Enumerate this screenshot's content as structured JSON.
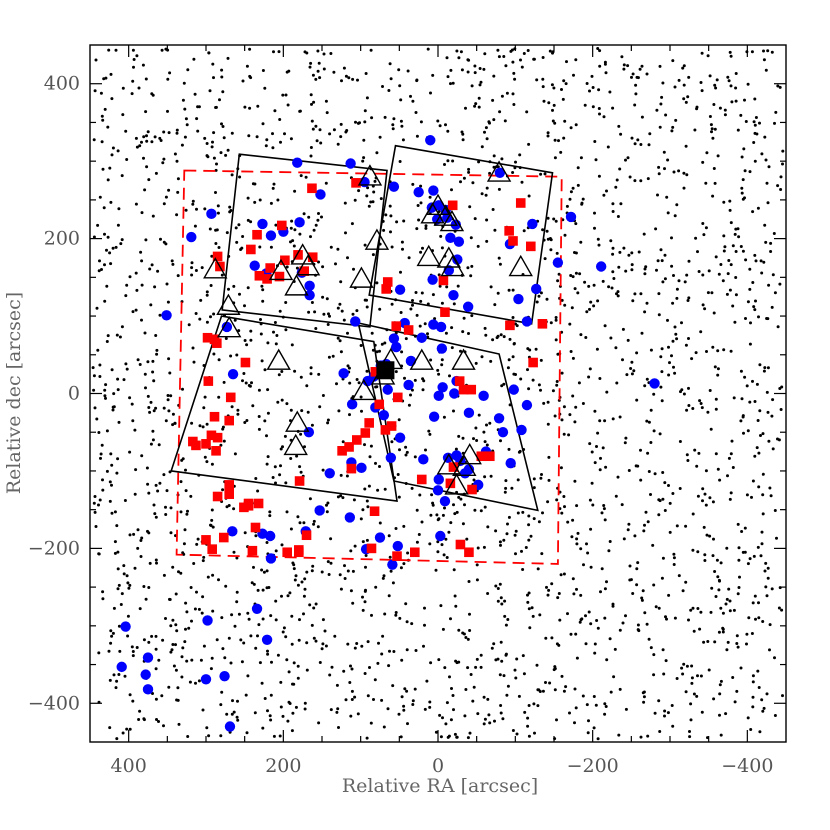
{
  "chart_data": {
    "type": "scatter",
    "title": "",
    "xlabel": "Relative RA [arcsec]",
    "ylabel": "Relative dec [arcsec]",
    "xlim": [
      450,
      -450
    ],
    "ylim": [
      -450,
      450
    ],
    "xticks": [
      400,
      200,
      0,
      -200,
      -400
    ],
    "yticks": [
      -400,
      -200,
      0,
      200,
      400
    ],
    "xtick_labels": [
      "400",
      "200",
      "0",
      "−200",
      "−400"
    ],
    "ytick_labels": [
      "−400",
      "−200",
      "0",
      "200",
      "400"
    ],
    "grid": false,
    "colors": {
      "field_stars": "#000000",
      "blue_circles": "#0000ff",
      "red_squares": "#ff0000",
      "triangles": "#000000",
      "center_marker": "#000000",
      "dashed_field": "#ff0000"
    },
    "series": [
      {
        "marker": "circle",
        "color": "#0000ff",
        "points": [
          [
            10,
            327
          ],
          [
            113,
            297
          ],
          [
            182,
            298
          ],
          [
            -80,
            285
          ],
          [
            95,
            273
          ],
          [
            57,
            267
          ],
          [
            152,
            257
          ],
          [
            25,
            260
          ],
          [
            6,
            262
          ],
          [
            8,
            240
          ],
          [
            -1,
            243
          ],
          [
            -10,
            237
          ],
          [
            -12,
            227
          ],
          [
            1,
            225
          ],
          [
            -23,
            218
          ],
          [
            293,
            232
          ],
          [
            227,
            219
          ],
          [
            -172,
            228
          ],
          [
            179,
            221
          ],
          [
            -122,
            219
          ],
          [
            200,
            209
          ],
          [
            216,
            204
          ],
          [
            -16,
            201
          ],
          [
            -27,
            196
          ],
          [
            -93,
            193
          ],
          [
            319,
            202
          ],
          [
            -211,
            164
          ],
          [
            -155,
            169
          ],
          [
            237,
            165
          ],
          [
            222,
            155
          ],
          [
            -25,
            173
          ],
          [
            -14,
            159
          ],
          [
            -127,
            135
          ],
          [
            166,
            139
          ],
          [
            166,
            127
          ],
          [
            -104,
            122
          ],
          [
            176,
            156
          ],
          [
            7,
            147
          ],
          [
            -115,
            93
          ],
          [
            49,
            134
          ],
          [
            -20,
            127
          ],
          [
            -39,
            112
          ],
          [
            107,
            93
          ],
          [
            273,
            86
          ],
          [
            43,
            91
          ],
          [
            6,
            89
          ],
          [
            -4,
            86
          ],
          [
            351,
            101
          ],
          [
            21,
            72
          ],
          [
            57,
            71
          ],
          [
            54,
            60
          ],
          [
            -5,
            58
          ],
          [
            35,
            42
          ],
          [
            67,
            38
          ],
          [
            74,
            36
          ],
          [
            122,
            26
          ],
          [
            83,
            22
          ],
          [
            -24,
            16
          ],
          [
            91,
            16
          ],
          [
            38,
            11
          ],
          [
            265,
            25
          ],
          [
            -6,
            8
          ],
          [
            -280,
            13
          ],
          [
            65,
            5
          ],
          [
            -98,
            5
          ],
          [
            -59,
            -3
          ],
          [
            -1,
            -3
          ],
          [
            -21,
            0
          ],
          [
            111,
            -14
          ],
          [
            -115,
            -15
          ],
          [
            81,
            -18
          ],
          [
            70,
            -28
          ],
          [
            -40,
            -25
          ],
          [
            5,
            -30
          ],
          [
            -79,
            -32
          ],
          [
            -84,
            -50
          ],
          [
            49,
            -57
          ],
          [
            -108,
            -47
          ],
          [
            167,
            -50
          ],
          [
            61,
            -83
          ],
          [
            19,
            -85
          ],
          [
            112,
            -89
          ],
          [
            -29,
            -87
          ],
          [
            -40,
            -98
          ],
          [
            -94,
            -90
          ],
          [
            140,
            -103
          ],
          [
            -52,
            -118
          ],
          [
            99,
            -96
          ],
          [
            -24,
            -80
          ],
          [
            -13,
            -83
          ],
          [
            -35,
            -103
          ],
          [
            0,
            -125
          ],
          [
            -9,
            -139
          ],
          [
            -62,
            -75
          ],
          [
            114,
            -160
          ],
          [
            266,
            -178
          ],
          [
            153,
            -151
          ],
          [
            227,
            -181
          ],
          [
            171,
            -178
          ],
          [
            217,
            -184
          ],
          [
            75,
            -186
          ],
          [
            93,
            -201
          ],
          [
            59,
            -221
          ],
          [
            -1,
            -111
          ],
          [
            216,
            -213
          ],
          [
            234,
            -278
          ],
          [
            221,
            -318
          ],
          [
            298,
            -293
          ],
          [
            276,
            -365
          ],
          [
            300,
            -369
          ],
          [
            375,
            -341
          ],
          [
            378,
            -363
          ],
          [
            375,
            -382
          ],
          [
            404,
            -301
          ],
          [
            409,
            -353
          ],
          [
            269,
            -430
          ],
          [
            52,
            -197
          ],
          [
            -3,
            -184
          ]
        ]
      },
      {
        "marker": "square",
        "color": "#ff0000",
        "points": [
          [
            163,
            265
          ],
          [
            106,
            272
          ],
          [
            -107,
            246
          ],
          [
            -19,
            243
          ],
          [
            -92,
            210
          ],
          [
            -97,
            197
          ],
          [
            -120,
            190
          ],
          [
            202,
            217
          ],
          [
            234,
            205
          ],
          [
            285,
            177
          ],
          [
            242,
            186
          ],
          [
            282,
            164
          ],
          [
            198,
            172
          ],
          [
            181,
            179
          ],
          [
            217,
            162
          ],
          [
            205,
            151
          ],
          [
            231,
            152
          ],
          [
            221,
            148
          ],
          [
            173,
            158
          ],
          [
            162,
            176
          ],
          [
            65,
            144
          ],
          [
            -7,
            146
          ],
          [
            67,
            135
          ],
          [
            -135,
            90
          ],
          [
            -93,
            88
          ],
          [
            -9,
            105
          ],
          [
            38,
            82
          ],
          [
            54,
            87
          ],
          [
            286,
            65
          ],
          [
            298,
            72
          ],
          [
            289,
            70
          ],
          [
            249,
            40
          ],
          [
            -123,
            40
          ],
          [
            -28,
            16
          ],
          [
            -43,
            5
          ],
          [
            -33,
            5
          ],
          [
            66,
            35
          ],
          [
            81,
            28
          ],
          [
            52,
            -5
          ],
          [
            76,
            -14
          ],
          [
            268,
            -5
          ],
          [
            297,
            16
          ],
          [
            293,
            -54
          ],
          [
            285,
            -57
          ],
          [
            270,
            -35
          ],
          [
            289,
            -30
          ],
          [
            287,
            -74
          ],
          [
            300,
            -65
          ],
          [
            317,
            -62
          ],
          [
            313,
            -67
          ],
          [
            179,
            -113
          ],
          [
            -56,
            -81
          ],
          [
            -67,
            -81
          ],
          [
            -20,
            -95
          ],
          [
            60,
            -42
          ],
          [
            68,
            -47
          ],
          [
            89,
            -38
          ],
          [
            94,
            -51
          ],
          [
            105,
            -60
          ],
          [
            115,
            -69
          ],
          [
            124,
            -74
          ],
          [
            112,
            -97
          ],
          [
            21,
            -111
          ],
          [
            -16,
            -116
          ],
          [
            -44,
            -124
          ],
          [
            270,
            -118
          ],
          [
            270,
            -130
          ],
          [
            245,
            -142
          ],
          [
            232,
            -142
          ],
          [
            236,
            -173
          ],
          [
            285,
            -133
          ],
          [
            277,
            -186
          ],
          [
            292,
            -201
          ],
          [
            300,
            -189
          ],
          [
            240,
            -203
          ],
          [
            180,
            -202
          ],
          [
            195,
            -205
          ],
          [
            170,
            -183
          ],
          [
            180,
            -205
          ],
          [
            82,
            -152
          ],
          [
            86,
            -200
          ],
          [
            30,
            -205
          ],
          [
            -29,
            -195
          ],
          [
            -40,
            -205
          ],
          [
            53,
            -210
          ],
          [
            245,
            -145
          ],
          [
            251,
            -147
          ]
        ]
      },
      {
        "marker": "triangle",
        "color": "#000000",
        "points": [
          [
            88,
            280
          ],
          [
            -79,
            285
          ],
          [
            0,
            242
          ],
          [
            7,
            231
          ],
          [
            -10,
            228
          ],
          [
            -18,
            221
          ],
          [
            79,
            197
          ],
          [
            12,
            176
          ],
          [
            -19,
            163
          ],
          [
            -107,
            163
          ],
          [
            288,
            160
          ],
          [
            203,
            158
          ],
          [
            175,
            178
          ],
          [
            168,
            164
          ],
          [
            183,
            138
          ],
          [
            99,
            148
          ],
          [
            -14,
            174
          ],
          [
            271,
            113
          ],
          [
            270,
            84
          ],
          [
            206,
            42
          ],
          [
            61,
            43
          ],
          [
            21,
            42
          ],
          [
            -33,
            42
          ],
          [
            71,
            23
          ],
          [
            96,
            3
          ],
          [
            182,
            -38
          ],
          [
            184,
            -68
          ],
          [
            -14,
            -93
          ],
          [
            -24,
            -119
          ],
          [
            -41,
            -80
          ],
          [
            -34,
            -95
          ]
        ]
      },
      {
        "marker": "big-square",
        "color": "#000000",
        "points": [
          [
            68,
            30
          ]
        ]
      }
    ],
    "annotations": {
      "dashed_field": [
        [
          328,
          288
        ],
        [
          -160,
          280
        ],
        [
          -155,
          -220
        ],
        [
          338,
          -208
        ]
      ],
      "solid_fields": [
        [
          [
            257,
            309
          ],
          [
            66,
            288
          ],
          [
            88,
            86
          ],
          [
            279,
            108
          ]
        ],
        [
          [
            55,
            320
          ],
          [
            -148,
            285
          ],
          [
            -121,
            90
          ],
          [
            89,
            127
          ]
        ],
        [
          [
            280,
            100
          ],
          [
            83,
            67
          ],
          [
            53,
            -139
          ],
          [
            345,
            -100
          ]
        ],
        [
          [
            103,
            91
          ],
          [
            -79,
            51
          ],
          [
            -129,
            -151
          ],
          [
            57,
            -113
          ]
        ]
      ]
    }
  }
}
